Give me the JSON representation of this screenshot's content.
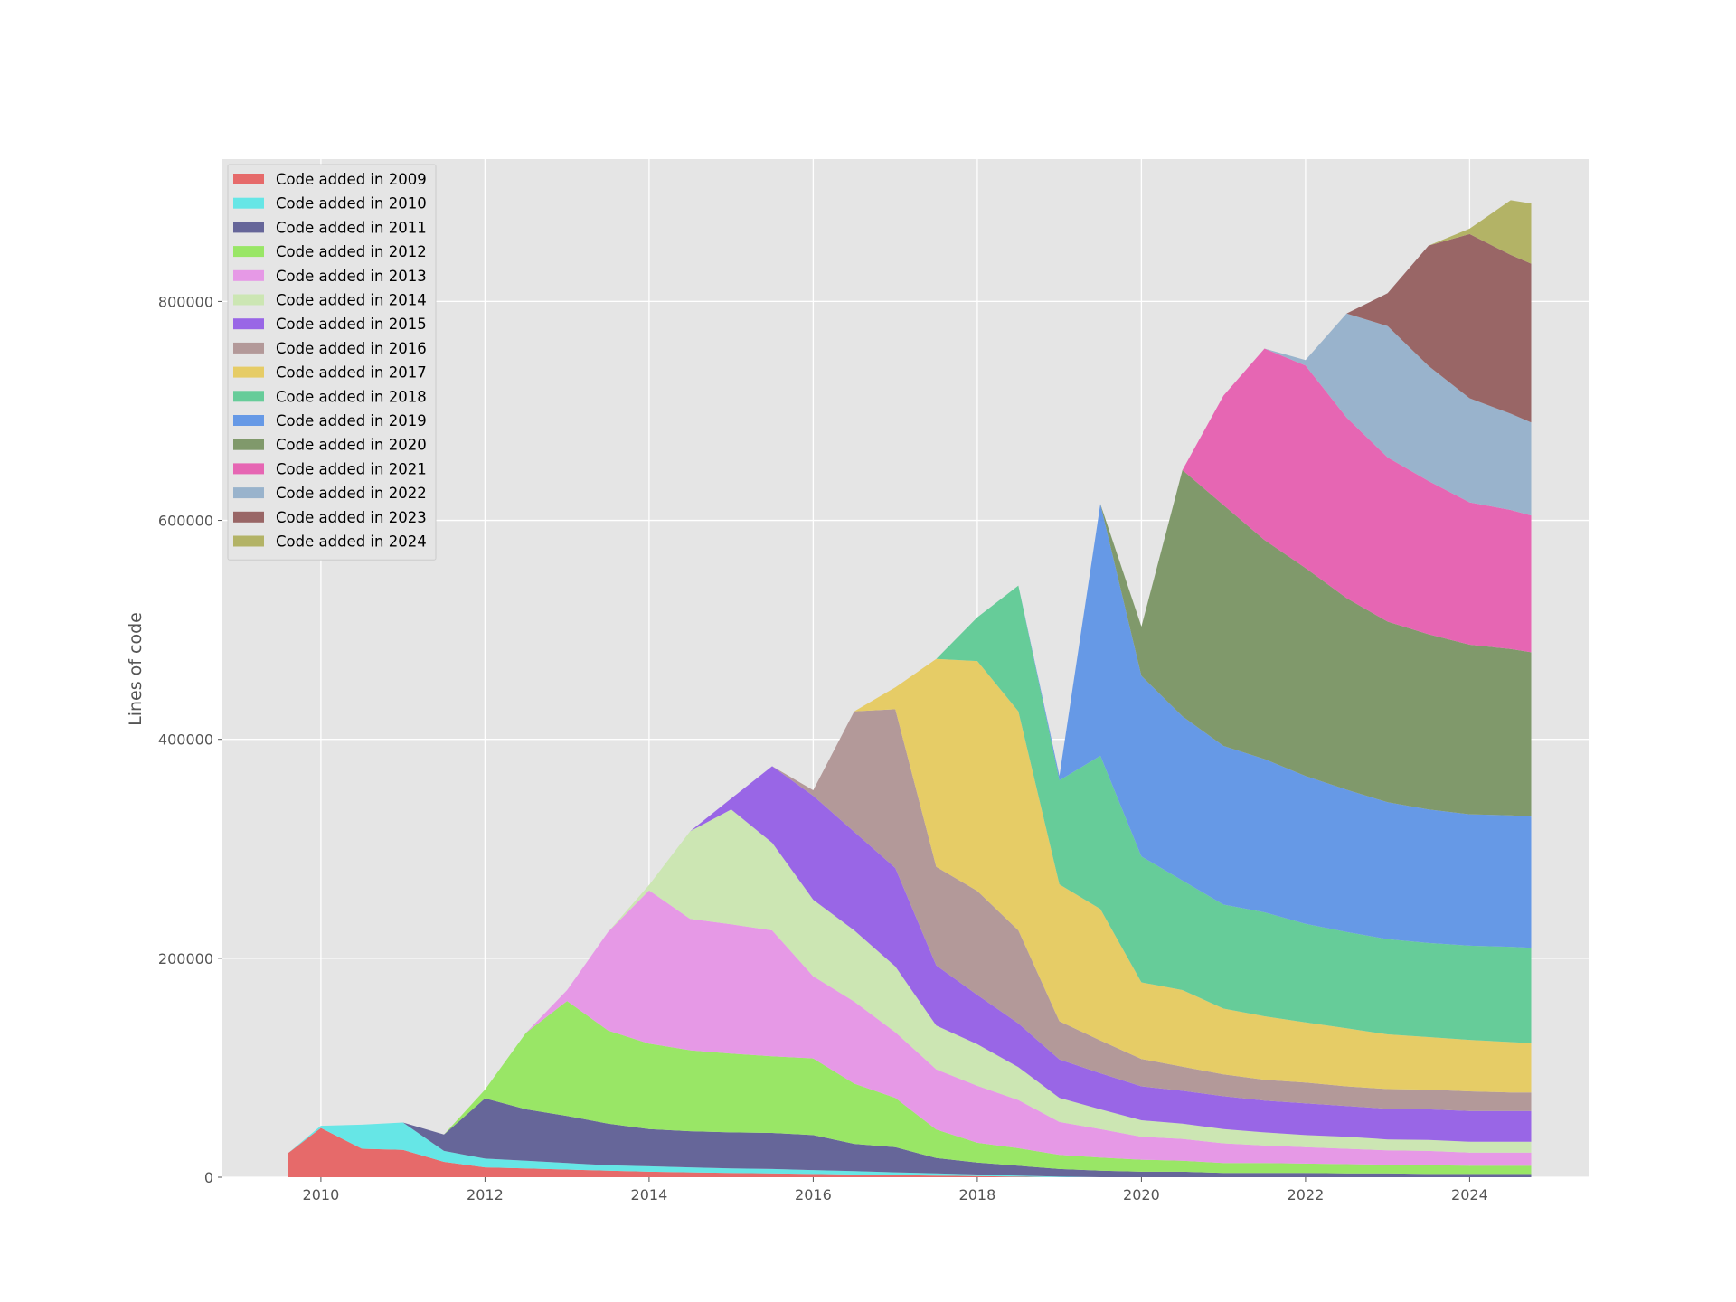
{
  "chart_data": {
    "type": "area",
    "stacked": true,
    "title": "",
    "xlabel": "",
    "ylabel": "Lines of code",
    "xlim": [
      2008.8,
      2025.45
    ],
    "ylim": [
      0,
      930000
    ],
    "grid": true,
    "legend_position": "top-left",
    "x_ticks": [
      2010,
      2012,
      2014,
      2016,
      2018,
      2020,
      2022,
      2024
    ],
    "x_tick_labels": [
      "2010",
      "2012",
      "2014",
      "2016",
      "2018",
      "2020",
      "2022",
      "2024"
    ],
    "y_ticks": [
      0,
      200000,
      400000,
      600000,
      800000
    ],
    "y_tick_labels": [
      "0",
      "200000",
      "400000",
      "600000",
      "800000"
    ],
    "x": [
      2009.6,
      2010.0,
      2010.5,
      2011.0,
      2011.5,
      2012.0,
      2012.5,
      2013.0,
      2013.5,
      2014.0,
      2014.5,
      2015.0,
      2015.5,
      2016.0,
      2016.5,
      2017.0,
      2017.5,
      2018.0,
      2018.5,
      2019.0,
      2019.5,
      2020.0,
      2020.5,
      2021.0,
      2021.5,
      2022.0,
      2022.5,
      2023.0,
      2023.5,
      2024.0,
      2024.5,
      2024.75
    ],
    "series": [
      {
        "name": "Code added in 2009",
        "color": "#e66a6a",
        "values": [
          22000,
          45000,
          26000,
          25000,
          14000,
          9000,
          8000,
          7000,
          6000,
          5000,
          4500,
          4000,
          3500,
          3000,
          2500,
          2000,
          1500,
          1000,
          500,
          0,
          0,
          0,
          0,
          0,
          0,
          0,
          0,
          0,
          0,
          0,
          0,
          0
        ]
      },
      {
        "name": "Code added in 2010",
        "color": "#66e6e6",
        "values": [
          0,
          2000,
          22000,
          25000,
          10000,
          8000,
          7000,
          6000,
          5000,
          5000,
          4500,
          4000,
          4000,
          3500,
          3000,
          2500,
          2000,
          1500,
          1000,
          500,
          0,
          0,
          0,
          0,
          0,
          0,
          0,
          0,
          0,
          0,
          0,
          0
        ]
      },
      {
        "name": "Code added in 2011",
        "color": "#666699",
        "values": [
          0,
          0,
          0,
          0,
          15000,
          55000,
          47000,
          43000,
          38000,
          34000,
          33000,
          33000,
          33000,
          32000,
          25000,
          23000,
          14000,
          11000,
          9000,
          7000,
          6000,
          5000,
          5000,
          4000,
          4000,
          4000,
          3500,
          3500,
          3000,
          3000,
          3000,
          3000
        ]
      },
      {
        "name": "Code added in 2012",
        "color": "#99e666",
        "values": [
          0,
          0,
          0,
          0,
          0,
          8000,
          70000,
          105000,
          85000,
          78000,
          74000,
          72000,
          70000,
          70000,
          55000,
          45000,
          26000,
          18000,
          16000,
          13000,
          12000,
          11000,
          10000,
          9000,
          9000,
          8500,
          8500,
          8000,
          8000,
          7500,
          7500,
          7500
        ]
      },
      {
        "name": "Code added in 2013",
        "color": "#e699e6",
        "values": [
          0,
          0,
          0,
          0,
          0,
          0,
          0,
          10000,
          90000,
          140000,
          120000,
          118000,
          115000,
          75000,
          75000,
          60000,
          55000,
          52000,
          44000,
          30000,
          26000,
          21000,
          20000,
          18000,
          16000,
          15000,
          14000,
          13000,
          13000,
          12000,
          12000,
          12000
        ]
      },
      {
        "name": "Code added in 2014",
        "color": "#cce6b3",
        "values": [
          0,
          0,
          0,
          0,
          0,
          0,
          0,
          0,
          0,
          5000,
          80000,
          105000,
          80000,
          70000,
          65000,
          60000,
          40000,
          38000,
          30000,
          22000,
          18000,
          15000,
          14000,
          13000,
          12000,
          11000,
          11000,
          10000,
          10000,
          10000,
          10000,
          10000
        ]
      },
      {
        "name": "Code added in 2015",
        "color": "#9966e6",
        "values": [
          0,
          0,
          0,
          0,
          0,
          0,
          0,
          0,
          0,
          0,
          0,
          10000,
          70000,
          95000,
          90000,
          90000,
          55000,
          45000,
          40000,
          35000,
          33000,
          31000,
          30000,
          30000,
          29000,
          29000,
          28000,
          28000,
          28000,
          28000,
          28000,
          28000
        ]
      },
      {
        "name": "Code added in 2016",
        "color": "#b39999",
        "values": [
          0,
          0,
          0,
          0,
          0,
          0,
          0,
          0,
          0,
          0,
          0,
          0,
          0,
          5000,
          110000,
          145000,
          90000,
          95000,
          85000,
          35000,
          30000,
          25000,
          22000,
          20000,
          19000,
          19000,
          18000,
          18000,
          18000,
          18000,
          17000,
          17000
        ]
      },
      {
        "name": "Code added in 2017",
        "color": "#e6cc66",
        "values": [
          0,
          0,
          0,
          0,
          0,
          0,
          0,
          0,
          0,
          0,
          0,
          0,
          0,
          0,
          0,
          20000,
          190000,
          210000,
          200000,
          125000,
          120000,
          70000,
          70000,
          60000,
          58000,
          55000,
          53000,
          50000,
          48000,
          47000,
          46000,
          45000
        ]
      },
      {
        "name": "Code added in 2018",
        "color": "#66cc99",
        "values": [
          0,
          0,
          0,
          0,
          0,
          0,
          0,
          0,
          0,
          0,
          0,
          0,
          0,
          0,
          0,
          0,
          0,
          40000,
          115000,
          95000,
          140000,
          115000,
          100000,
          95000,
          95000,
          90000,
          88000,
          87000,
          86000,
          86000,
          87000,
          87000
        ]
      },
      {
        "name": "Code added in 2019",
        "color": "#6699e6",
        "values": [
          0,
          0,
          0,
          0,
          0,
          0,
          0,
          0,
          0,
          0,
          0,
          0,
          0,
          0,
          0,
          0,
          0,
          0,
          0,
          4000,
          230000,
          165000,
          150000,
          145000,
          140000,
          135000,
          130000,
          125000,
          122000,
          120000,
          120000,
          120000
        ]
      },
      {
        "name": "Code added in 2020",
        "color": "#80996b",
        "values": [
          0,
          0,
          0,
          0,
          0,
          0,
          0,
          0,
          0,
          0,
          0,
          0,
          0,
          0,
          0,
          0,
          0,
          0,
          0,
          0,
          0,
          45000,
          225000,
          220000,
          200000,
          190000,
          175000,
          165000,
          160000,
          155000,
          152000,
          150000
        ]
      },
      {
        "name": "Code added in 2021",
        "color": "#e666b3",
        "values": [
          0,
          0,
          0,
          0,
          0,
          0,
          0,
          0,
          0,
          0,
          0,
          0,
          0,
          0,
          0,
          0,
          0,
          0,
          0,
          0,
          0,
          0,
          0,
          100000,
          175000,
          185000,
          165000,
          150000,
          140000,
          130000,
          127000,
          125000
        ]
      },
      {
        "name": "Code added in 2022",
        "color": "#99b3cc",
        "values": [
          0,
          0,
          0,
          0,
          0,
          0,
          0,
          0,
          0,
          0,
          0,
          0,
          0,
          0,
          0,
          0,
          0,
          0,
          0,
          0,
          0,
          0,
          0,
          0,
          0,
          5000,
          95000,
          120000,
          105000,
          95000,
          88000,
          85000
        ]
      },
      {
        "name": "Code added in 2023",
        "color": "#996666",
        "values": [
          0,
          0,
          0,
          0,
          0,
          0,
          0,
          0,
          0,
          0,
          0,
          0,
          0,
          0,
          0,
          0,
          0,
          0,
          0,
          0,
          0,
          0,
          0,
          0,
          0,
          0,
          0,
          30000,
          110000,
          150000,
          145000,
          145000
        ]
      },
      {
        "name": "Code added in 2024",
        "color": "#b3b366",
        "values": [
          0,
          0,
          0,
          0,
          0,
          0,
          0,
          0,
          0,
          0,
          0,
          0,
          0,
          0,
          0,
          0,
          0,
          0,
          0,
          0,
          0,
          0,
          0,
          0,
          0,
          0,
          0,
          0,
          0,
          5000,
          50000,
          55000
        ]
      }
    ]
  }
}
